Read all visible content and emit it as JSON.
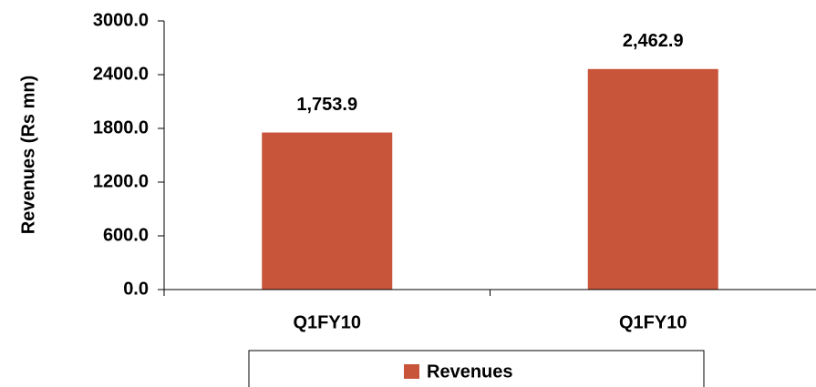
{
  "chart_data": {
    "type": "bar",
    "ylabel": "Revenues (Rs mn)",
    "categories": [
      "Q1FY10",
      "Q1FY10"
    ],
    "series": [
      {
        "name": "Revenues",
        "color": "#c8553a",
        "values": [
          1753.9,
          2462.9
        ],
        "value_labels": [
          "1,753.9",
          "2,462.9"
        ]
      }
    ],
    "ylim": [
      0,
      3000
    ],
    "yticks": [
      {
        "value": 0,
        "label": "0.0"
      },
      {
        "value": 600,
        "label": "600.0"
      },
      {
        "value": 1200,
        "label": "1200.0"
      },
      {
        "value": 1800,
        "label": "1800.0"
      },
      {
        "value": 2400,
        "label": "2400.0"
      },
      {
        "value": 3000,
        "label": "3000.0"
      }
    ],
    "legend": "bottom"
  }
}
